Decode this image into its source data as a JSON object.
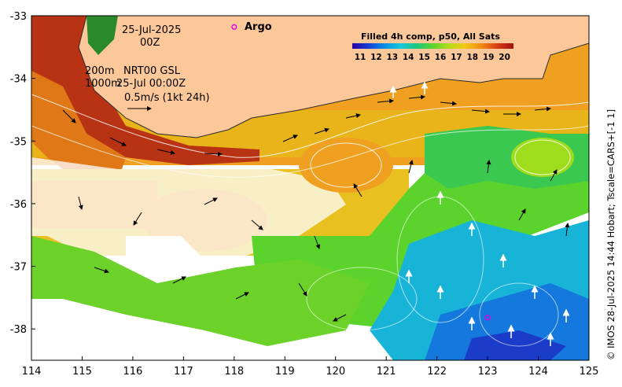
{
  "map": {
    "x_axis": {
      "min": 114,
      "max": 125,
      "ticks": [
        "114",
        "115",
        "116",
        "117",
        "118",
        "119",
        "120",
        "121",
        "122",
        "123",
        "124",
        "125"
      ]
    },
    "y_axis": {
      "min": -38.5,
      "max": -33,
      "ticks": [
        "-33",
        "-34",
        "-35",
        "-36",
        "-37",
        "-38"
      ]
    },
    "date_line": "25-Jul-2025",
    "time_line": "00Z",
    "depth_200": "200m",
    "product": "NRT00 GSL",
    "depth_1000": "1000m",
    "product_time": "25-Jul 00:00Z",
    "scale_label": "0.5m/s (1kt 24h)",
    "argo_label": "Argo",
    "argo_floats": [
      {
        "lon": 118.0,
        "lat": -33.18
      },
      {
        "lon": 123.0,
        "lat": -37.82
      }
    ],
    "colorbar": {
      "title": "Filled 4h comp, p50, All Sats",
      "ticks": [
        "11",
        "12",
        "13",
        "14",
        "15",
        "16",
        "17",
        "18",
        "19",
        "20"
      ],
      "colors": [
        "#2b00a0",
        "#1540d8",
        "#0a8ee6",
        "#14c8dc",
        "#1cc87c",
        "#5cd22c",
        "#b4dc1e",
        "#f2c814",
        "#f28c14",
        "#d83c14",
        "#a01010"
      ]
    },
    "credit": "© IMOS 28-Jul-2025 14:44 Hobart; Tscale=CARS+[-1 1]",
    "colors": {
      "land": "#fcc89a",
      "coast": "#2a2a2a"
    }
  }
}
